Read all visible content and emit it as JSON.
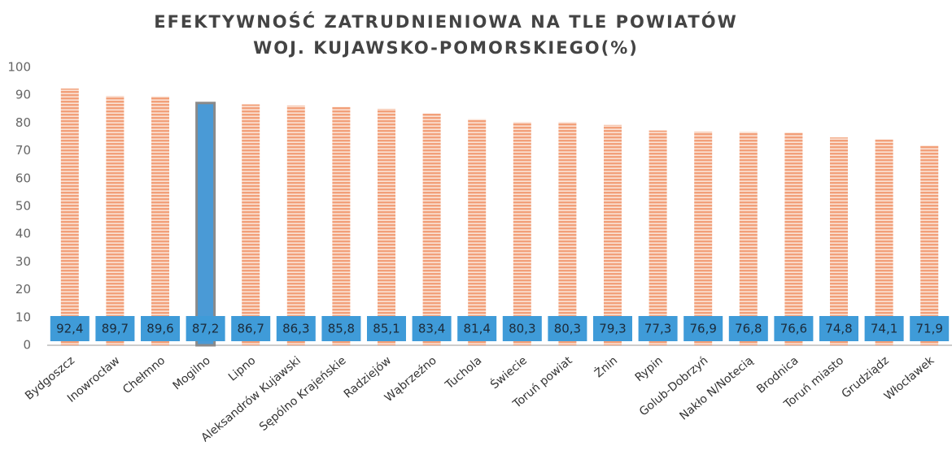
{
  "chart_data": {
    "type": "bar",
    "title": [
      "EFEKTYWNOŚĆ ZATRUDNIENIOWA NA TLE POWIATÓW",
      "WOJ. KUJAWSKO-POMORSKIEGO(%)"
    ],
    "categories": [
      "Bydgoszcz",
      "Inowrocław",
      "Chełmno",
      "Mogilno",
      "Lipno",
      "Aleksandrów Kujawski",
      "Sępólno Krajeńskie",
      "Radziejów",
      "Wąbrzeźno",
      "Tuchola",
      "Świecie",
      "Toruń powiat",
      "Żnin",
      "Rypin",
      "Golub-Dobrzyń",
      "Nakło N/Notecią",
      "Brodnica",
      "Toruń miasto",
      "Grudziądz",
      "Włocławek"
    ],
    "values": [
      92.4,
      89.7,
      89.6,
      87.2,
      86.7,
      86.3,
      85.8,
      85.1,
      83.4,
      81.4,
      80.3,
      80.3,
      79.3,
      77.3,
      76.9,
      76.8,
      76.6,
      74.8,
      74.1,
      71.9
    ],
    "value_labels": [
      "92,4",
      "89,7",
      "89,6",
      "87,2",
      "86,7",
      "86,3",
      "85,8",
      "85,1",
      "83,4",
      "81,4",
      "80,3",
      "80,3",
      "79,3",
      "77,3",
      "76,9",
      "76,8",
      "76,6",
      "74,8",
      "74,1",
      "71,9"
    ],
    "colors": [
      "#f2a07a",
      "#f2a07a",
      "#f2a07a",
      "#4a9ad6",
      "#f2a07a",
      "#f2a07a",
      "#f2a07a",
      "#f2a07a",
      "#f2a07a",
      "#f2a07a",
      "#f2a07a",
      "#f2a07a",
      "#f2a07a",
      "#f2a07a",
      "#f2a07a",
      "#f2a07a",
      "#f2a07a",
      "#f2a07a",
      "#f2a07a",
      "#f2a07a"
    ],
    "ylim": [
      0,
      100
    ],
    "yticks": [
      0,
      10,
      20,
      30,
      40,
      50,
      60,
      70,
      80,
      90,
      100
    ],
    "grid": false
  }
}
